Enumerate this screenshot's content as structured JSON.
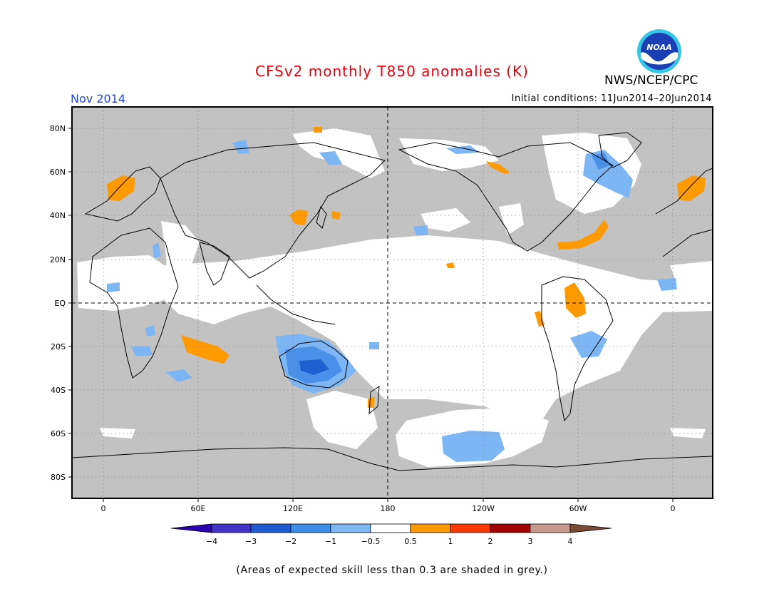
{
  "header": {
    "title": "CFSv2 monthly T850 anomalies (K)",
    "month": "Nov 2014",
    "initial_conditions": "Initial conditions: 11Jun2014–20Jun2014",
    "agency": "NWS/NCEP/CPC",
    "logo_text": "NOAA"
  },
  "map": {
    "lat_labels": [
      "80N",
      "60N",
      "40N",
      "20N",
      "EQ",
      "20S",
      "40S",
      "60S",
      "80S"
    ],
    "lon_labels": [
      "0",
      "60E",
      "120E",
      "180",
      "120W",
      "60W",
      "0"
    ],
    "colors": {
      "grey_low_skill": "#c2c2c2",
      "neutral": "#ffffff",
      "neg_1": "#7cb6f4",
      "neg_2": "#4a90e8",
      "neg_3": "#1f5fcf",
      "pos_1": "#ff9a00"
    }
  },
  "legend": {
    "ticks": [
      "−4",
      "−3",
      "−2",
      "−1",
      "−0.5",
      "0.5",
      "1",
      "2",
      "3",
      "4"
    ],
    "colors": [
      "#2a00b0",
      "#4333c9",
      "#1d5bd0",
      "#3d8ee8",
      "#7db8f5",
      "#ffffff",
      "#ff9a00",
      "#ff3a00",
      "#a20000",
      "#c79a8b",
      "#7a4a32"
    ]
  },
  "footnote": "(Areas of expected skill less than 0.3 are shaded in grey.)"
}
